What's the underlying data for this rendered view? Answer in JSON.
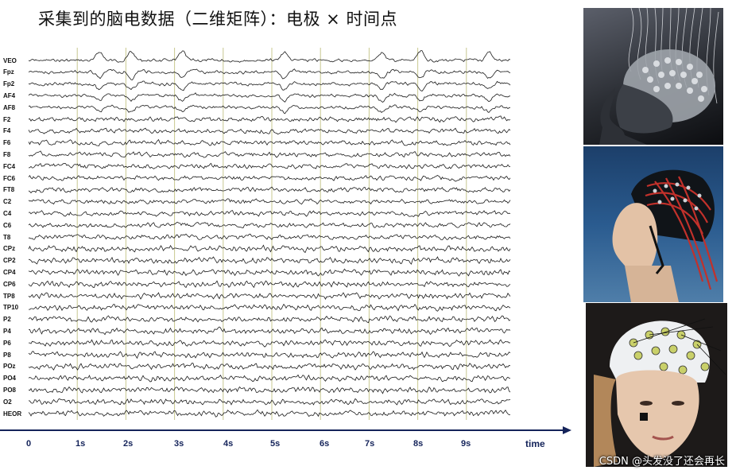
{
  "title": "采集到的脑电数据（二维矩阵）：电极 × 时间点",
  "channels": [
    "VEO",
    "Fpz",
    "Fp2",
    "AF4",
    "AF8",
    "F2",
    "F4",
    "F6",
    "F8",
    "FC4",
    "FC6",
    "FT8",
    "C2",
    "C4",
    "C6",
    "T8",
    "CPz",
    "CP2",
    "CP4",
    "CP6",
    "TP8",
    "TP10",
    "P2",
    "P4",
    "P6",
    "P8",
    "POz",
    "PO4",
    "PO8",
    "O2",
    "HEOR"
  ],
  "time_axis": {
    "ticks": [
      "0",
      "1s",
      "2s",
      "3s",
      "4s",
      "5s",
      "6s",
      "7s",
      "8s",
      "9s"
    ],
    "label": "time",
    "arrow_color": "#14235a"
  },
  "colors": {
    "trace": "#1a1a1a",
    "gridline": "#c8c890",
    "axis": "#14235a"
  },
  "blink_times_s": [
    1.4,
    2.05,
    3.1,
    5.2,
    7.2,
    8.0,
    9.4
  ],
  "images": [
    {
      "name": "eeg-electrode-head-image"
    },
    {
      "name": "eeg-cap-woman-image"
    },
    {
      "name": "eeg-white-cap-woman-image"
    }
  ],
  "watermark": "CSDN @头发没了还会再长"
}
